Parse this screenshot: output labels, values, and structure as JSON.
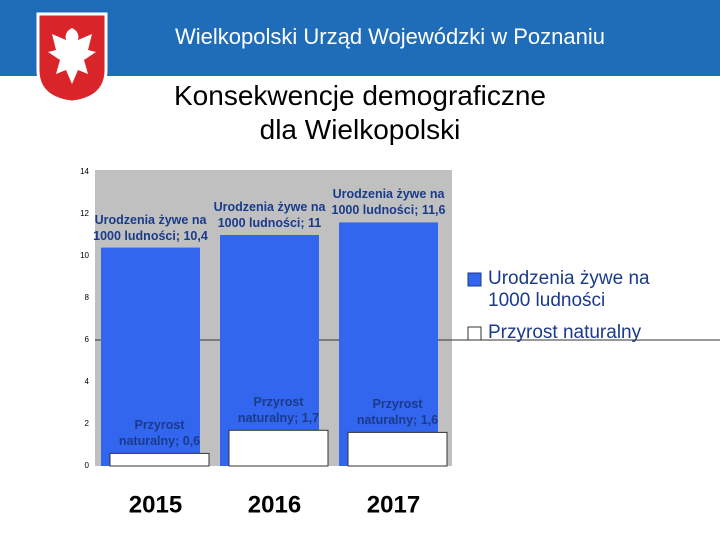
{
  "header": {
    "title": "Wielkopolski Urząd Wojewódzki w Poznaniu"
  },
  "chart_data": {
    "type": "bar",
    "title": [
      "Konsekwencje demograficzne",
      "dla Wielkopolski"
    ],
    "categories": [
      "2015",
      "2016",
      "2017"
    ],
    "label_separator": "; ",
    "series": [
      {
        "name": "Urodzenia żywe na 1000 ludności",
        "color": "#3366ee",
        "values": [
          10.4,
          11,
          11.6
        ],
        "value_labels": [
          "10,4",
          "11",
          "11,6"
        ]
      },
      {
        "name": "Przyrost naturalny",
        "color": "#ffffff",
        "values": [
          0.6,
          1.7,
          1.6
        ],
        "value_labels": [
          "0,6",
          "1,7",
          "1,6"
        ]
      }
    ],
    "ylim": [
      0,
      14
    ],
    "yticks": [
      0,
      2,
      4,
      6,
      8,
      10,
      12,
      14
    ],
    "grid_values": [
      6
    ],
    "legend": "right"
  }
}
